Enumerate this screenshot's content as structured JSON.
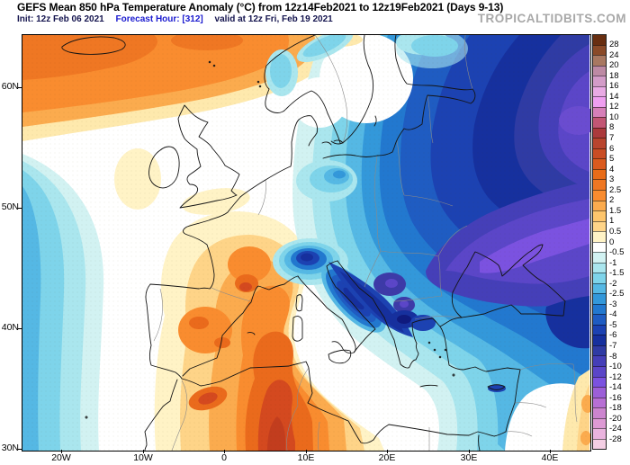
{
  "header": {
    "title": "GEFS Mean 850 hPa Temperature Anomaly (°C) from 12z14Feb2021 to 12z19Feb2021 (Days 9-13)",
    "init": "Init: 12z Feb 06 2021",
    "forecast_hour": "Forecast Hour: [312]",
    "valid": "valid at 12z Fri, Feb 19 2021",
    "watermark": "TROPICALTIDBITS.COM"
  },
  "axes": {
    "y_labels": [
      "60N",
      "50N",
      "40N",
      "30N"
    ],
    "x_labels": [
      "20W",
      "10W",
      "0",
      "10E",
      "20E",
      "30E",
      "40E"
    ]
  },
  "chart_data": {
    "type": "heatmap",
    "model": "GEFS",
    "level": "850 hPa",
    "variable": "Mean Temperature Anomaly (°C)",
    "period": "12z14Feb2021 to 12z19Feb2021 (Days 9-13)",
    "init_time": "12z Feb 06 2021",
    "forecast_hour": 312,
    "valid_time": "12z Fri, Feb 19 2021",
    "x_ticks": [
      "20W",
      "10W",
      "0",
      "10E",
      "20E",
      "30E",
      "40E"
    ],
    "y_ticks": [
      "60N",
      "50N",
      "40N",
      "30N"
    ],
    "lon_range_deg": [
      -25,
      44.7
    ],
    "lat_range_deg": [
      30,
      64.4
    ],
    "colorbar": {
      "labels": [
        "28",
        "24",
        "20",
        "18",
        "16",
        "14",
        "12",
        "10",
        "8",
        "7",
        "6",
        "5",
        "4",
        "3",
        "2.5",
        "2",
        "1.5",
        "1",
        "0.5",
        "0",
        "-0.5",
        "-1",
        "-1.5",
        "-2",
        "-2.5",
        "-3",
        "-4",
        "-5",
        "-6",
        "-7",
        "-8",
        "-10",
        "-12",
        "-14",
        "-16",
        "-18",
        "-20",
        "-24",
        "-28"
      ],
      "colors": [
        "#682e10",
        "#8a4a28",
        "#a87861",
        "#bd8aa4",
        "#d39cc8",
        "#e9aae4",
        "#ef9ff0",
        "#d67fb8",
        "#c25674",
        "#ab3a3c",
        "#b8452e",
        "#c94d24",
        "#da5a1e",
        "#e86c18",
        "#ef7723",
        "#f98c2f",
        "#fbab4e",
        "#fdc56c",
        "#fed488",
        "#fff3c6",
        "#ffffff",
        "#d2f2f2",
        "#aae6ee",
        "#7ed4ea",
        "#55b8e4",
        "#3398da",
        "#2278cf",
        "#1f5cc2",
        "#1c42b2",
        "#16309e",
        "#2f3ba4",
        "#453fb8",
        "#5b46c8",
        "#7b52e0",
        "#9c5fd8",
        "#b76fd4",
        "#cc85cf",
        "#dd9ad4",
        "#eab4de",
        "#f4cfe4"
      ]
    },
    "field_regions": [
      {
        "region": "NE Atlantic west of Iberia",
        "anomaly_c": "-1 to -2.5"
      },
      {
        "region": "Iceland / far N Atlantic",
        "anomaly_c": "+2 to +4"
      },
      {
        "region": "UK and Ireland",
        "anomaly_c": "0 to +1"
      },
      {
        "region": "France",
        "anomaly_c": "+2 to +5"
      },
      {
        "region": "Iberia",
        "anomaly_c": "+2 to +4"
      },
      {
        "region": "NW Africa (Morocco / N Algeria)",
        "anomaly_c": "+4 to +6"
      },
      {
        "region": "Central Algeria near 30N 5E",
        "anomaly_c": "+6 to +8"
      },
      {
        "region": "Alps / N Italy",
        "anomaly_c": "-5 to -7"
      },
      {
        "region": "Scandinavia",
        "anomaly_c": "-1 to -4"
      },
      {
        "region": "Central and Eastern Europe",
        "anomaly_c": "-4 to -8"
      },
      {
        "region": "Balkans / Turkey",
        "anomaly_c": "-6 to -10"
      },
      {
        "region": "Ukraine / S Russia / Black Sea",
        "anomaly_c": "-10 to -14"
      },
      {
        "region": "E Mediterranean / Levant",
        "anomaly_c": "-1 to -3"
      },
      {
        "region": "Arabia near right edge",
        "anomaly_c": "+0.5 to +2"
      }
    ]
  }
}
